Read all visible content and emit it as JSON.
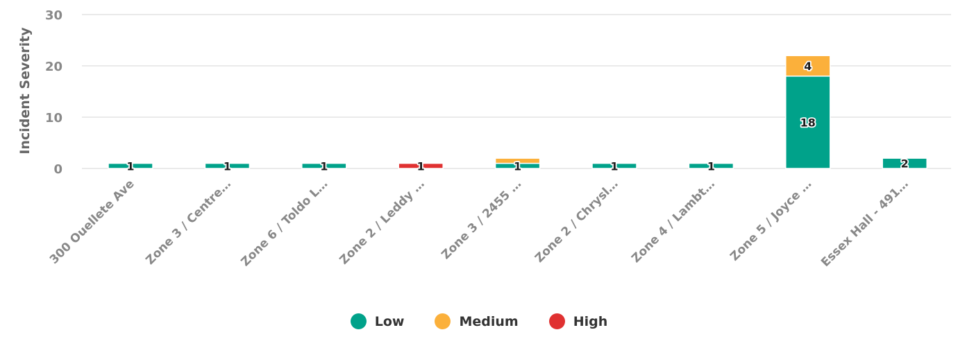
{
  "chart_data": {
    "type": "bar",
    "stacked": true,
    "ylabel": "Incident Severity",
    "ylim": [
      0,
      30
    ],
    "yticks": [
      0,
      10,
      20,
      30
    ],
    "grid": true,
    "legend_position": "bottom",
    "categories": [
      "300 Ouellete Ave",
      "Zone 3 / Centre…",
      "Zone 6 / Toldo L…",
      "Zone 2 / Leddy …",
      "Zone 3 / 2455 …",
      "Zone 2 / Chrysl…",
      "Zone 4 / Lambt…",
      "Zone 5 / Joyce …",
      "Essex Hall - 491…"
    ],
    "series": [
      {
        "name": "Low",
        "color": "#00a28a",
        "values": [
          1,
          1,
          1,
          0,
          1,
          1,
          1,
          18,
          2
        ]
      },
      {
        "name": "Medium",
        "color": "#fbb03b",
        "values": [
          0,
          0,
          0,
          0,
          1,
          0,
          0,
          4,
          0
        ]
      },
      {
        "name": "High",
        "color": "#e03131",
        "values": [
          0,
          0,
          0,
          1,
          0,
          0,
          0,
          0,
          0
        ]
      }
    ],
    "data_labels": [
      {
        "category": 0,
        "series": 0,
        "text": "1"
      },
      {
        "category": 1,
        "series": 0,
        "text": "1"
      },
      {
        "category": 2,
        "series": 0,
        "text": "1"
      },
      {
        "category": 3,
        "series": 2,
        "text": "1"
      },
      {
        "category": 4,
        "series": 0,
        "text": "1"
      },
      {
        "category": 5,
        "series": 0,
        "text": "1"
      },
      {
        "category": 6,
        "series": 0,
        "text": "1"
      },
      {
        "category": 7,
        "series": 0,
        "text": "18"
      },
      {
        "category": 7,
        "series": 1,
        "text": "4"
      },
      {
        "category": 8,
        "series": 0,
        "text": "2"
      }
    ]
  }
}
